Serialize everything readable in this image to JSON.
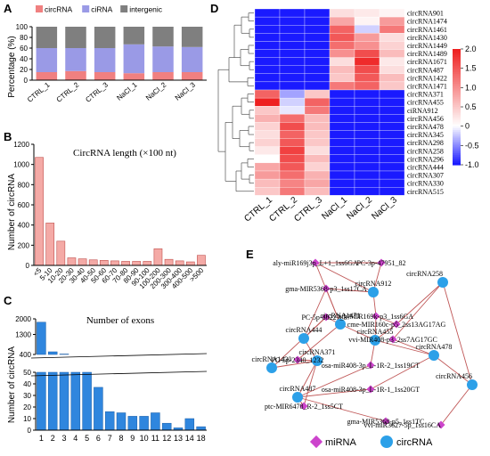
{
  "panels": [
    "A",
    "B",
    "C",
    "D",
    "E"
  ],
  "chart_data": [
    {
      "panel": "A",
      "type": "bar",
      "stacked": true,
      "categories": [
        "CTRL_1",
        "CTRL_2",
        "CTRL_3",
        "NaCl_1",
        "NaCl_2",
        "NaCl_3"
      ],
      "series": [
        {
          "name": "circRNA",
          "color": "#f08080",
          "values": [
            15,
            17,
            15,
            13,
            15,
            15
          ]
        },
        {
          "name": "ciRNA",
          "color": "#9a9ae6",
          "values": [
            45,
            43,
            45,
            54,
            48,
            47
          ]
        },
        {
          "name": "intergenic",
          "color": "#7f7f7f",
          "values": [
            40,
            40,
            40,
            33,
            37,
            38
          ]
        }
      ],
      "ylabel": "Percentage (%)",
      "yticks": [
        "0",
        "20",
        "40",
        "60",
        "80",
        "100"
      ],
      "ylim": [
        0,
        100
      ],
      "legend": "top"
    },
    {
      "panel": "B",
      "type": "bar",
      "title": "CircRNA length  (×100 nt)",
      "ylabel": "Number of circRNA",
      "categories": [
        "<5",
        "5-10",
        "10-20",
        "20-30",
        "30-40",
        "40-50",
        "50-60",
        "60-70",
        "70-80",
        "80-90",
        "90-100",
        "100-200",
        "200-300",
        "300-400",
        "400-500",
        ">500"
      ],
      "values": [
        1070,
        420,
        240,
        75,
        65,
        55,
        50,
        45,
        40,
        40,
        40,
        165,
        60,
        45,
        35,
        100
      ],
      "yticks": [
        "0",
        "200",
        "400",
        "600",
        "800",
        "1000",
        "1200"
      ],
      "ylim": [
        0,
        1200
      ],
      "color": "#f4aaa6"
    },
    {
      "panel": "C",
      "type": "bar",
      "title": "Number of exons",
      "ylabel": "Number of circRNA",
      "categories": [
        "1",
        "2",
        "3",
        "4",
        "5",
        "6",
        "7",
        "8",
        "9",
        "10",
        "11",
        "12",
        "13",
        "14",
        "18"
      ],
      "values": [
        1850,
        520,
        420,
        380,
        52,
        37,
        16,
        15,
        12,
        12,
        15,
        6,
        2,
        10,
        3
      ],
      "yticks": [
        "0",
        "10",
        "20",
        "30",
        "40",
        "50",
        "400",
        "1300",
        "2000"
      ],
      "axis_break": "50-400",
      "color": "#2f86de"
    },
    {
      "panel": "D",
      "type": "heatmap",
      "columns": [
        "CTRL_1",
        "CTRL_2",
        "CTRL_3",
        "NaCl_1",
        "NaCl_2",
        "NaCl_3"
      ],
      "rows": [
        "circRNA901",
        "circRNA1474",
        "circRNA1461",
        "circRNA1430",
        "circRNA1449",
        "circRNA1489",
        "circRNA1671",
        "circRNA487",
        "circRNA1422",
        "circRNA1471",
        "circRNA371",
        "circRNA455",
        "ciRNA912",
        "circRNA456",
        "circRNA478",
        "circRNA345",
        "circRNA298",
        "circRNA258",
        "circRNA296",
        "circRNA444",
        "circRNA307",
        "circRNA330",
        "circRNA515"
      ],
      "values": [
        [
          -1,
          -1,
          -1,
          0.3,
          0.2,
          0.1
        ],
        [
          -1,
          -1,
          -1,
          0.8,
          0.1,
          0.9
        ],
        [
          -1,
          -1,
          -1,
          1.4,
          -0.2,
          1.2
        ],
        [
          -1,
          -1,
          -1,
          1.5,
          0.9,
          0.3
        ],
        [
          -1,
          -1,
          -1,
          1.3,
          1.0,
          0.4
        ],
        [
          -1,
          -1,
          -1,
          1.0,
          1.6,
          0.6
        ],
        [
          -1,
          -1,
          -1,
          0.3,
          1.9,
          0.2
        ],
        [
          -1,
          -1,
          -1,
          0.6,
          1.6,
          0.3
        ],
        [
          -1,
          -1,
          -1,
          0.5,
          1.5,
          0.6
        ],
        [
          -1,
          -1,
          -1,
          1.2,
          1.4,
          0.5
        ],
        [
          1.4,
          -0.4,
          0.5,
          -1,
          -1,
          -1
        ],
        [
          2.0,
          -0.2,
          1.4,
          -1,
          -1,
          -1
        ],
        [
          0.5,
          -0.1,
          1.2,
          -1,
          -1,
          -1
        ],
        [
          0.7,
          1.3,
          0.6,
          -1,
          -1,
          -1
        ],
        [
          0.4,
          1.6,
          0.6,
          -1,
          -1,
          -1
        ],
        [
          0.3,
          1.4,
          0.5,
          -1,
          -1,
          -1
        ],
        [
          0.4,
          1.5,
          0.5,
          -1,
          -1,
          -1
        ],
        [
          0.2,
          1.7,
          0.3,
          -1,
          -1,
          -1
        ],
        [
          0.0,
          1.6,
          0.6,
          -1,
          -1,
          -1
        ],
        [
          0.8,
          1.5,
          0.4,
          -1,
          -1,
          -1
        ],
        [
          0.9,
          1.3,
          0.7,
          -1,
          -1,
          -1
        ],
        [
          0.6,
          1.1,
          0.8,
          -1,
          -1,
          -1
        ],
        [
          0.5,
          1.2,
          0.6,
          -1,
          -1,
          -1
        ]
      ],
      "colorbar_ticks": [
        "2.0",
        "1.5",
        "1.0",
        "0.5",
        "0",
        "-0.5",
        "-1.0"
      ],
      "colorbar_range": [
        -1.0,
        2.0
      ],
      "colors": {
        "low": "#1a1aff",
        "mid": "#ffffff",
        "high": "#ee2020"
      }
    }
  ],
  "network": {
    "nodes": [
      {
        "label": "aly-miR169j3p_L+1_1ss6GA",
        "kind": "miRNA"
      },
      {
        "label": "PC-3p-47951_82",
        "kind": "miRNA"
      },
      {
        "label": "gma-MIR5368-p3_1ss17CA",
        "kind": "miRNA"
      },
      {
        "label": "circRNA912",
        "kind": "circRNA"
      },
      {
        "label": "circRNA258",
        "kind": "circRNA"
      },
      {
        "label": "PC-5p-88227_37",
        "kind": "miRNA"
      },
      {
        "label": "ath-MIR169k-p3_1ss6GA",
        "kind": "miRNA"
      },
      {
        "label": "circRNA1471",
        "kind": "circRNA"
      },
      {
        "label": "cme-MIR160c-p5_2ss13AG17AG",
        "kind": "miRNA"
      },
      {
        "label": "circRNA455",
        "kind": "circRNA"
      },
      {
        "label": "vvi-MIR408-p3_2ss7AG17GC",
        "kind": "miRNA"
      },
      {
        "label": "circRNA444",
        "kind": "circRNA"
      },
      {
        "label": "PC-5p-2340_1232",
        "kind": "miRNA"
      },
      {
        "label": "circRNA478",
        "kind": "circRNA"
      },
      {
        "label": "circRNA371",
        "kind": "circRNA"
      },
      {
        "label": "osa-miR408-3p_L-1R-2_1ss19GT",
        "kind": "miRNA"
      },
      {
        "label": "circRNA1430",
        "kind": "circRNA"
      },
      {
        "label": "circRNA456",
        "kind": "circRNA"
      },
      {
        "label": "osa-miR408-3p_L-1R-1_1ss20GT",
        "kind": "miRNA"
      },
      {
        "label": "circRNA487",
        "kind": "circRNA"
      },
      {
        "label": "ptc-MIR6478_R-2_1ss5CT",
        "kind": "miRNA"
      },
      {
        "label": "gma-MIR5368-p5_1ss1TC",
        "kind": "miRNA"
      },
      {
        "label": "vvi-miR3627-5p_1ss16CA",
        "kind": "miRNA"
      }
    ],
    "legend": {
      "mirna": "miRNA",
      "circrna": "circRNA"
    },
    "colors": {
      "mirna": "#cc44cc",
      "circrna": "#2ca0e8",
      "edge": "#c05858"
    }
  }
}
